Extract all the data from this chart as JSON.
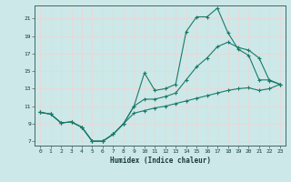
{
  "xlabel": "Humidex (Indice chaleur)",
  "bg_color": "#cce8e8",
  "grid_color": "#ddeeee",
  "line_color": "#1a7a6a",
  "xlim": [
    -0.5,
    23.5
  ],
  "ylim": [
    6.5,
    22.5
  ],
  "xticks": [
    0,
    1,
    2,
    3,
    4,
    5,
    6,
    7,
    8,
    9,
    10,
    11,
    12,
    13,
    14,
    15,
    16,
    17,
    18,
    19,
    20,
    21,
    22,
    23
  ],
  "yticks": [
    7,
    9,
    11,
    13,
    15,
    17,
    19,
    21
  ],
  "line1_x": [
    0,
    1,
    2,
    3,
    4,
    5,
    6,
    7,
    8,
    9,
    10,
    11,
    12,
    13,
    14,
    15,
    16,
    17,
    18,
    19,
    20,
    21,
    22,
    23
  ],
  "line1_y": [
    10.3,
    10.1,
    9.1,
    9.2,
    8.6,
    7.0,
    7.0,
    7.8,
    9.0,
    11.0,
    14.8,
    12.8,
    13.0,
    13.5,
    19.5,
    21.2,
    21.2,
    22.2,
    19.4,
    17.5,
    16.8,
    14.0,
    14.0,
    13.5
  ],
  "line2_x": [
    0,
    1,
    2,
    3,
    4,
    5,
    6,
    7,
    8,
    9,
    10,
    11,
    12,
    13,
    14,
    15,
    16,
    17,
    18,
    19,
    20,
    21,
    22,
    23
  ],
  "line2_y": [
    10.3,
    10.1,
    9.1,
    9.2,
    8.6,
    7.0,
    7.0,
    7.8,
    9.0,
    11.0,
    11.8,
    11.8,
    12.1,
    12.5,
    14.0,
    15.5,
    16.5,
    17.8,
    18.3,
    17.7,
    17.4,
    16.5,
    13.9,
    13.5
  ],
  "line3_x": [
    0,
    1,
    2,
    3,
    4,
    5,
    6,
    7,
    8,
    9,
    10,
    11,
    12,
    13,
    14,
    15,
    16,
    17,
    18,
    19,
    20,
    21,
    22,
    23
  ],
  "line3_y": [
    10.3,
    10.1,
    9.1,
    9.2,
    8.6,
    7.0,
    7.0,
    7.8,
    9.0,
    10.2,
    10.5,
    10.8,
    11.0,
    11.3,
    11.6,
    11.9,
    12.2,
    12.5,
    12.8,
    13.0,
    13.1,
    12.8,
    13.0,
    13.5
  ]
}
